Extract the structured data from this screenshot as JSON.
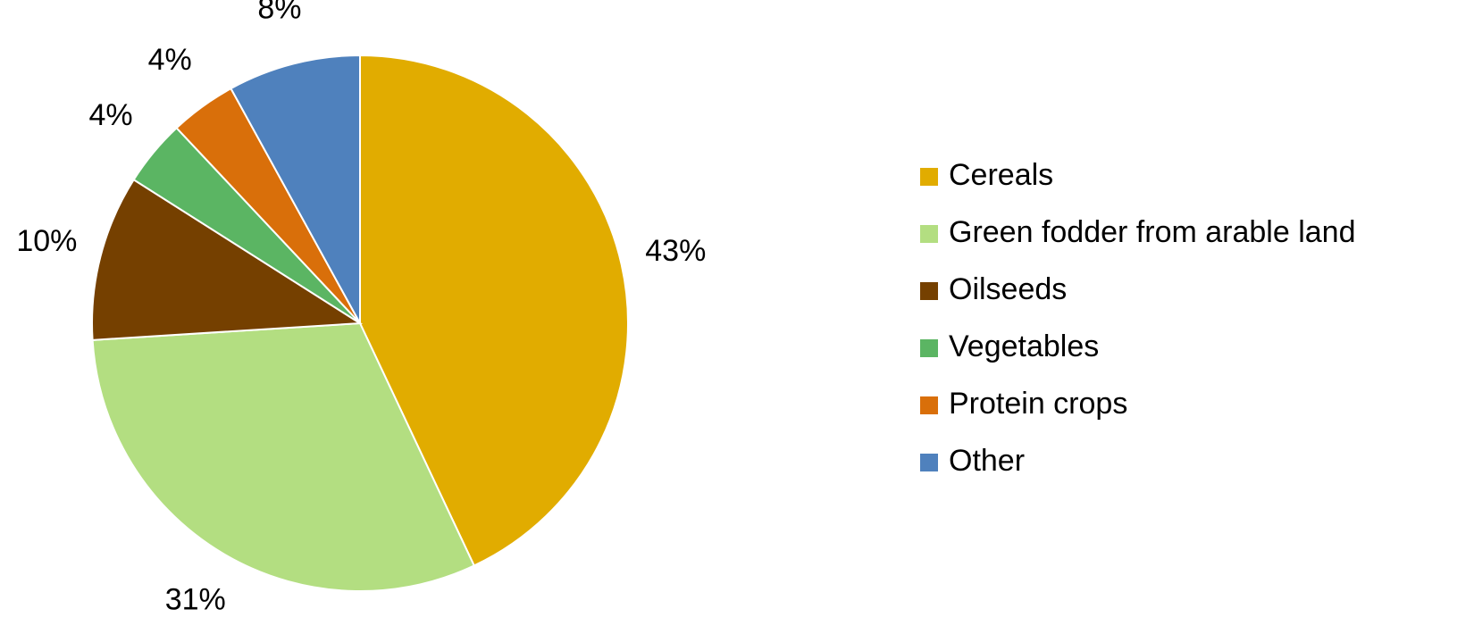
{
  "chart_data": {
    "type": "pie",
    "categories": [
      "Cereals",
      "Green fodder from arable land",
      "Oilseeds",
      "Vegetables",
      "Protein crops",
      "Other"
    ],
    "values": [
      43,
      31,
      10,
      4,
      4,
      8
    ],
    "value_labels": [
      "43%",
      "31%",
      "10%",
      "4%",
      "4%",
      "8%"
    ],
    "colors": [
      "#e1ac00",
      "#b3de81",
      "#754000",
      "#5bb563",
      "#d96f0a",
      "#4f81bd"
    ],
    "legend": "right"
  }
}
